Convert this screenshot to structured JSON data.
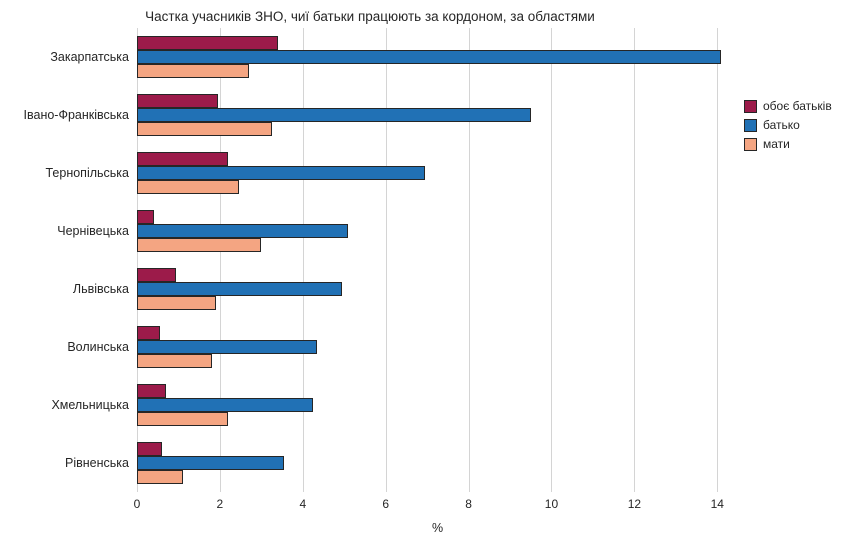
{
  "title": "Частка учасників ЗНО, чиї батьки працюють за кордоном, за областями",
  "chart_data": {
    "type": "bar",
    "orientation": "horizontal",
    "title": "Частка учасників ЗНО, чиї батьки працюють за кордоном, за областями",
    "categories": [
      "Закарпатська",
      "Івано-Франківська",
      "Тернопільська",
      "Чернівецька",
      "Львівська",
      "Волинська",
      "Хмельницька",
      "Рівненська"
    ],
    "series": [
      {
        "name": "обоє батьків",
        "color": "#9c1b4a",
        "values": [
          3.4,
          1.95,
          2.2,
          0.4,
          0.95,
          0.55,
          0.7,
          0.6
        ]
      },
      {
        "name": "батько",
        "color": "#2171b5",
        "values": [
          14.1,
          9.5,
          6.95,
          5.1,
          4.95,
          4.35,
          4.25,
          3.55
        ]
      },
      {
        "name": "мати",
        "color": "#f4a582",
        "values": [
          2.7,
          3.25,
          2.45,
          3.0,
          1.9,
          1.8,
          2.2,
          1.1
        ]
      }
    ],
    "xlabel": "%",
    "ylabel": "",
    "xlim": [
      0,
      14.5
    ],
    "xticks": [
      0,
      2,
      4,
      6,
      8,
      10,
      12,
      14
    ],
    "grid": true,
    "legend_position": "right"
  }
}
